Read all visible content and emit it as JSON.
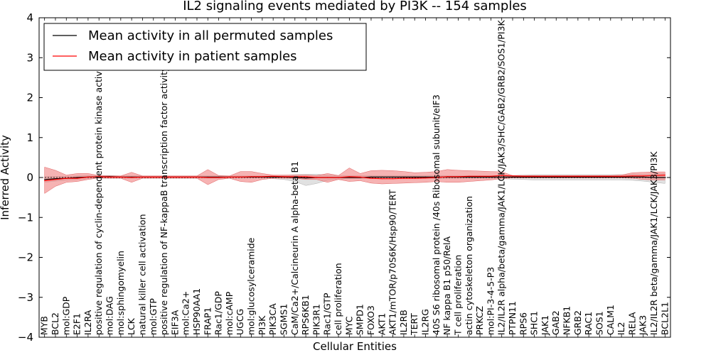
{
  "chart_data": {
    "type": "line",
    "title": "IL2 signaling events mediated by PI3K -- 154 samples",
    "xlabel": "Cellular Entities",
    "ylabel": "Inferred Activity",
    "ylim": [
      -4,
      4
    ],
    "yticks": [
      -4,
      -3,
      -2,
      -1,
      0,
      1,
      2,
      3,
      4
    ],
    "ytick_labels": [
      "−4",
      "−3",
      "−2",
      "−1",
      "0",
      "1",
      "2",
      "3",
      "4"
    ],
    "grid": false,
    "legend_position": "top-left",
    "categories": [
      "MYB",
      "BCL2",
      "mol:GDP",
      "E2F1",
      "IL2RA",
      "positive regulation of cyclin-dependent protein kinase activity",
      "mol:DAG",
      "mol:sphingomyelin",
      "LCK",
      "natural killer cell activation",
      "mol:GTP",
      "positive regulation of NF-kappaB transcription factor activity",
      "EIF3A",
      "mol:Ca2+",
      "HSP90AA1",
      "FRAP1",
      "Rac1/GDP",
      "mol:cAMP",
      "UGCG",
      "mol:glucosylceramide",
      "PI3K",
      "PIK3CA",
      "SGMS1",
      "CaM/Ca2+/Calcineurin A alpha-beta B1",
      "RPS6KB1",
      "PIK3R1",
      "Rac1/GTP",
      "cell proliferation",
      "MYC",
      "SMPD1",
      "FOXO3",
      "AKT1",
      "AKT1/mTOR/p70S6K/Hsp90/TERT",
      "IL2RB",
      "TERT",
      "IL2RG",
      "40S S6 ribosomal protein /40s Ribosomal subunit/eIF3",
      "NF kappa B1 p50/RelA",
      "T cell proliferation",
      "actin cytoskeleton organization",
      "PRKCZ",
      "mol:PI-3-4-5-P3",
      "IL2/IL2R alpha/beta/gamma/JAK1/LCK/JAK3/SHC/GAB2/GRB2/SOS1/PI3K",
      "PTPN11",
      "RPS6",
      "SHC1",
      "JAK1",
      "GAB2",
      "NFKB1",
      "GRB2",
      "RAC1",
      "SOS1",
      "CALM1",
      "IL2",
      "RELA",
      "JAK3",
      "IL2/IL2R beta/gamma/JAK1/LCK/JAK3/PI3K",
      "BCL2L1"
    ],
    "series": [
      {
        "name": "Mean activity in all permuted samples",
        "color": "#000000",
        "values": [
          -0.05,
          -0.03,
          -0.02,
          0.0,
          0.01,
          0.02,
          0.02,
          0.01,
          0.01,
          0.01,
          0.01,
          0.01,
          0.01,
          0.01,
          0.01,
          0.01,
          0.01,
          0.01,
          0.01,
          0.01,
          0.01,
          0.01,
          0.01,
          0.0,
          -0.01,
          0.0,
          0.0,
          0.0,
          0.0,
          0.0,
          0.01,
          0.01,
          0.01,
          0.01,
          0.01,
          0.01,
          0.01,
          0.01,
          0.01,
          0.01,
          0.01,
          0.01,
          0.01,
          0.01,
          0.01,
          0.01,
          0.01,
          0.01,
          0.01,
          0.01,
          0.01,
          0.01,
          0.01,
          0.01,
          0.01,
          0.01,
          0.0,
          0.0
        ],
        "lower": [
          -0.12,
          -0.09,
          -0.07,
          -0.05,
          -0.03,
          -0.02,
          -0.02,
          -0.02,
          -0.02,
          -0.02,
          -0.02,
          -0.02,
          -0.02,
          -0.02,
          -0.02,
          -0.02,
          -0.02,
          -0.02,
          -0.02,
          -0.02,
          -0.02,
          -0.03,
          -0.05,
          -0.1,
          -0.2,
          -0.15,
          -0.07,
          -0.04,
          -0.03,
          -0.03,
          -0.03,
          -0.03,
          -0.03,
          -0.03,
          -0.03,
          -0.03,
          -0.03,
          -0.03,
          -0.03,
          -0.03,
          -0.03,
          -0.03,
          -0.03,
          -0.04,
          -0.05,
          -0.06,
          -0.06,
          -0.06,
          -0.06,
          -0.06,
          -0.06,
          -0.06,
          -0.06,
          -0.06,
          -0.07,
          -0.09,
          -0.12,
          -0.15
        ],
        "upper": [
          0.02,
          0.03,
          0.03,
          0.04,
          0.05,
          0.05,
          0.05,
          0.04,
          0.04,
          0.04,
          0.04,
          0.04,
          0.04,
          0.04,
          0.04,
          0.04,
          0.04,
          0.04,
          0.04,
          0.04,
          0.04,
          0.04,
          0.05,
          0.07,
          0.08,
          0.08,
          0.06,
          0.05,
          0.05,
          0.05,
          0.05,
          0.05,
          0.05,
          0.05,
          0.05,
          0.05,
          0.05,
          0.05,
          0.05,
          0.05,
          0.05,
          0.05,
          0.05,
          0.05,
          0.06,
          0.07,
          0.07,
          0.07,
          0.07,
          0.07,
          0.07,
          0.07,
          0.07,
          0.07,
          0.08,
          0.08,
          0.09,
          0.1
        ]
      },
      {
        "name": "Mean activity in patient samples",
        "color": "#ff0000",
        "values": [
          -0.08,
          -0.05,
          -0.02,
          -0.02,
          0.01,
          0.02,
          0.01,
          0.01,
          0.0,
          0.01,
          0.01,
          0.01,
          0.01,
          0.01,
          0.01,
          0.0,
          0.0,
          0.01,
          0.01,
          0.02,
          0.02,
          0.03,
          0.02,
          0.02,
          0.02,
          0.0,
          0.0,
          0.0,
          0.02,
          0.01,
          -0.02,
          -0.03,
          -0.03,
          -0.02,
          -0.02,
          -0.01,
          0.0,
          0.02,
          0.02,
          0.03,
          0.03,
          0.03,
          0.05,
          0.04,
          0.03,
          0.03,
          0.03,
          0.03,
          0.03,
          0.03,
          0.03,
          0.03,
          0.03,
          0.03,
          0.04,
          0.04,
          0.05,
          0.06
        ],
        "lower": [
          -0.4,
          -0.22,
          -0.12,
          -0.1,
          -0.05,
          -0.01,
          -0.02,
          -0.02,
          -0.12,
          -0.02,
          -0.02,
          -0.02,
          -0.02,
          -0.02,
          -0.02,
          -0.18,
          -0.05,
          -0.02,
          -0.1,
          -0.12,
          -0.05,
          -0.02,
          -0.02,
          -0.02,
          -0.05,
          -0.05,
          -0.12,
          -0.05,
          -0.1,
          -0.08,
          -0.14,
          -0.16,
          -0.15,
          -0.14,
          -0.13,
          -0.12,
          -0.1,
          -0.12,
          -0.12,
          -0.1,
          -0.08,
          -0.06,
          -0.03,
          -0.01,
          -0.01,
          -0.01,
          -0.01,
          -0.01,
          -0.01,
          -0.01,
          -0.01,
          -0.01,
          -0.01,
          -0.01,
          -0.02,
          -0.05,
          -0.06,
          -0.06
        ],
        "upper": [
          0.26,
          0.18,
          0.06,
          0.1,
          0.1,
          0.05,
          0.04,
          0.04,
          0.13,
          0.04,
          0.04,
          0.04,
          0.04,
          0.04,
          0.04,
          0.2,
          0.05,
          0.04,
          0.15,
          0.15,
          0.1,
          0.06,
          0.06,
          0.06,
          0.06,
          0.05,
          0.1,
          0.05,
          0.24,
          0.1,
          0.17,
          0.18,
          0.17,
          0.15,
          0.12,
          0.13,
          0.15,
          0.2,
          0.18,
          0.17,
          0.16,
          0.15,
          0.14,
          0.05,
          0.05,
          0.05,
          0.05,
          0.05,
          0.05,
          0.05,
          0.05,
          0.05,
          0.05,
          0.06,
          0.12,
          0.13,
          0.14,
          0.14
        ]
      }
    ]
  }
}
